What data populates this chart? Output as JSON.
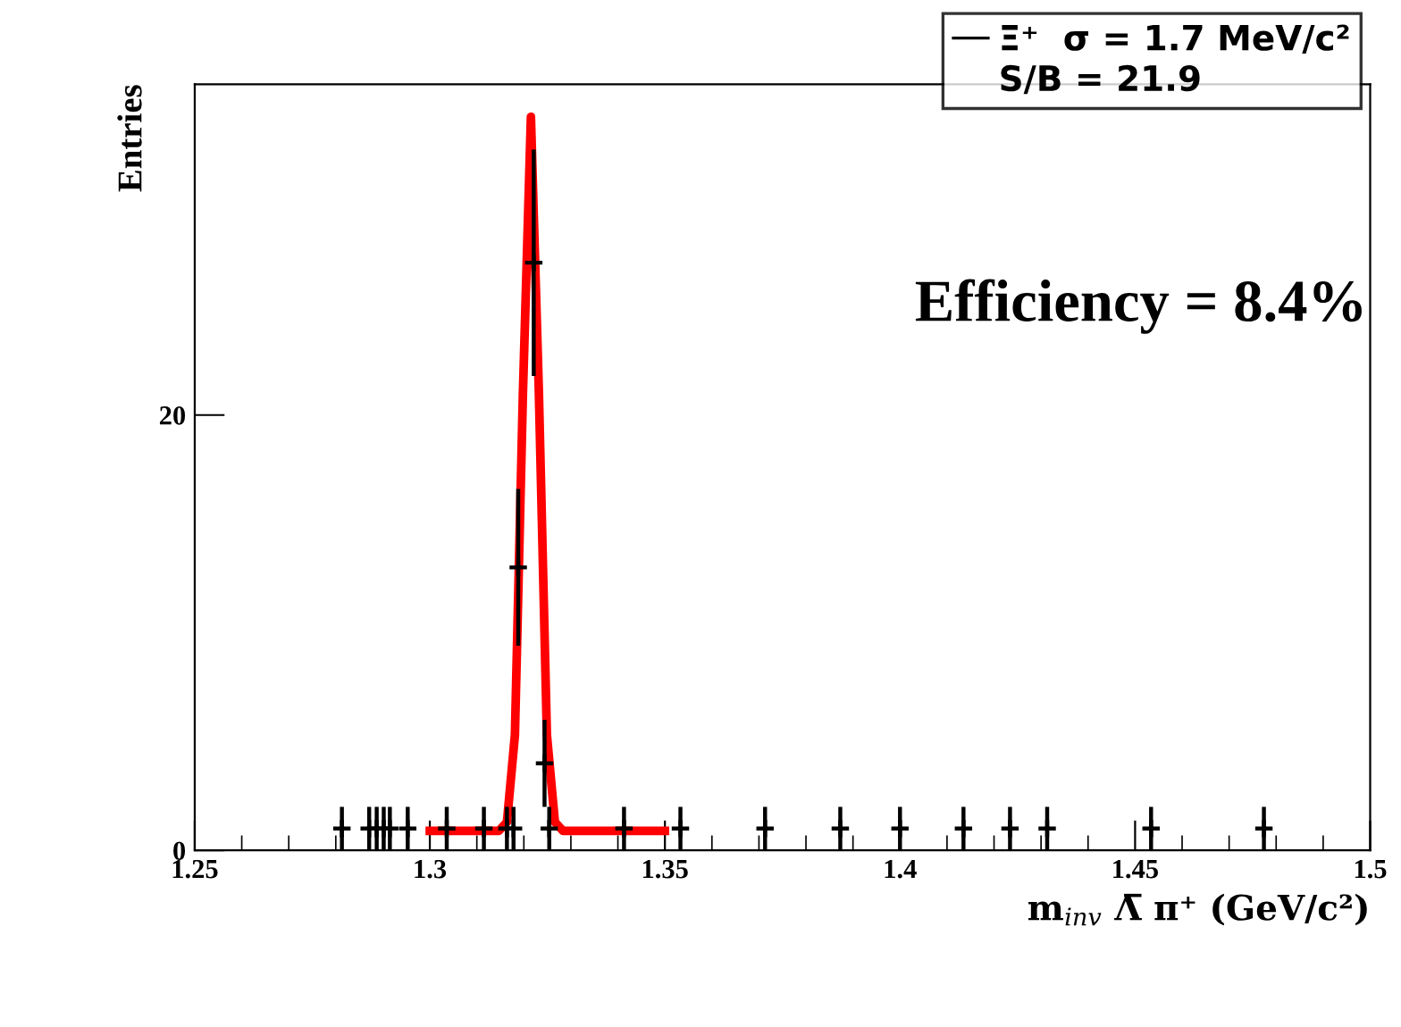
{
  "chart_data": {
    "type": "scatter",
    "xlabel": "m$_{inv}$ Λ̅ π⁺ (GeV/c²)",
    "ylabel": "Entries",
    "xlim": [
      1.25,
      1.5
    ],
    "xticks": [
      1.25,
      1.3,
      1.35,
      1.4,
      1.45,
      1.5
    ],
    "ylim": [
      0,
      35.2
    ],
    "yticks": [
      0,
      20
    ],
    "grid": false,
    "legend": "top right",
    "series": [
      {
        "name": "Ξ⁺  σ = 1.7 MeV/c²",
        "color": "#000000",
        "marker": "cross",
        "x": [
          1.2813,
          1.2871,
          1.2887,
          1.2902,
          1.2915,
          1.2953,
          1.3036,
          1.3115,
          1.3164,
          1.3178,
          1.3188,
          1.3221,
          1.3244,
          1.3254,
          1.3413,
          1.3533,
          1.3713,
          1.3873,
          1.4,
          1.4135,
          1.4234,
          1.4313,
          1.4534,
          1.4774
        ],
        "values": [
          1,
          1,
          1,
          1,
          1,
          1,
          1,
          1,
          1,
          1,
          13,
          27,
          4,
          1,
          1,
          1,
          1,
          1,
          1,
          1,
          1,
          1,
          1,
          1
        ],
        "errors": [
          1,
          1,
          1,
          1,
          1,
          1,
          1,
          1,
          1,
          1,
          3.6,
          5.2,
          2,
          1,
          1,
          1,
          1,
          1,
          1,
          1,
          1,
          1,
          1,
          1
        ],
        "xerrors": [
          0.0005,
          0.0005,
          0.0005,
          0.0005,
          0.0005,
          0.0005,
          0.0005,
          0.0005,
          0.0005,
          0.0005,
          0.0005,
          0.0005,
          0.0005,
          0.0005,
          0.0005,
          0.0005,
          0.0005,
          0.0005,
          0.0005,
          0.0005,
          0.0005,
          0.0005,
          0.0005,
          0.0005
        ]
      },
      {
        "color": "#ff0000",
        "type": "line",
        "x": [
          1.3,
          1.3147,
          1.3164,
          1.3181,
          1.3198,
          1.3215,
          1.3232,
          1.3249,
          1.3266,
          1.3283,
          1.35
        ],
        "values": [
          0.9,
          0.9,
          1.3,
          5.3,
          21,
          33.7,
          21,
          5.3,
          1.3,
          0.9,
          0.9
        ]
      }
    ],
    "annotations": [
      "S/B = 21.9",
      "Efficiency = 8.4%"
    ]
  }
}
